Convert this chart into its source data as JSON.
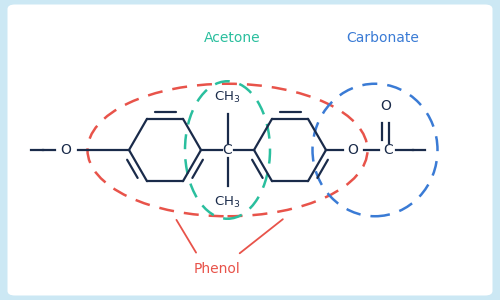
{
  "bg_outer": "#cce8f4",
  "bg_inner": "#ffffff",
  "phenol_color": "#e8534a",
  "acetone_color": "#2abf9e",
  "carbonate_color": "#3a7bd5",
  "structure_color": "#1a2b4a",
  "phenol_label": "Phenol",
  "acetone_label": "Acetone",
  "carbonate_label": "Carbonate",
  "label_fontsize": 10,
  "chem_fontsize": 9
}
